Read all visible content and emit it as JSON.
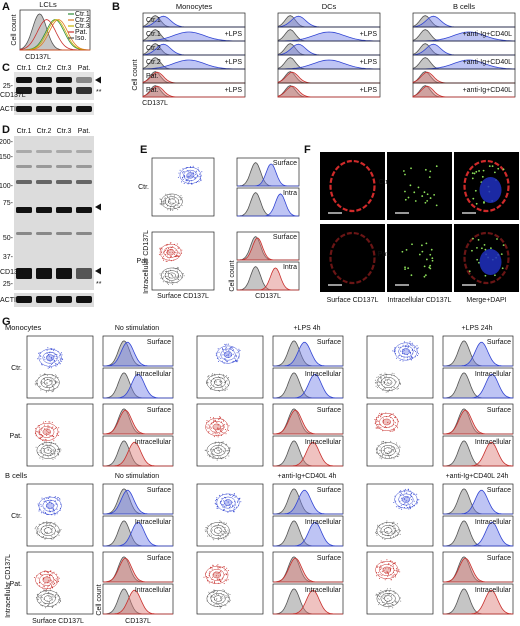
{
  "panels": {
    "A": {
      "letter": "A",
      "title": "LCLs",
      "legend": [
        "Ctr.1",
        "Ctr.2",
        "Ctr.3",
        "Pat.",
        "Iso."
      ],
      "y_label": "Cell count",
      "x_label": "CD137L"
    },
    "B": {
      "letter": "B",
      "columns": [
        "Monocytes",
        "DCs",
        "B cells"
      ],
      "rows": [
        {
          "label": "Ctr.1"
        },
        {
          "label": "Ctr.1",
          "treatments": [
            "+LPS",
            "+LPS",
            "+anti-Ig+CD40L"
          ]
        },
        {
          "label": "Ctr.2"
        },
        {
          "label": "Ctr.2",
          "treatments": [
            "+LPS",
            "+LPS",
            "+anti-Ig+CD40L"
          ]
        },
        {
          "label": "Pat."
        },
        {
          "label": "Pat.",
          "treatments": [
            "+LPS",
            "+LPS",
            "+anti-Ig+CD40L"
          ]
        }
      ],
      "y_label": "Cell count",
      "x_label": "CD137L"
    },
    "C": {
      "letter": "C",
      "lanes": [
        "Ctr.1",
        "Ctr.2",
        "Ctr.3",
        "Pat."
      ],
      "marker": "25-",
      "band_label": "CD137L",
      "loading": "ACTIN",
      "stars": "**"
    },
    "D": {
      "letter": "D",
      "lanes": [
        "Ctr.1",
        "Ctr.2",
        "Ctr.3",
        "Pat."
      ],
      "markers": [
        "200-",
        "150-",
        "100-",
        "75-",
        "50-",
        "37-",
        "25-"
      ],
      "band_label": "CD137L",
      "loading": "ACTIN",
      "stars": "**"
    },
    "E": {
      "letter": "E",
      "rows": [
        {
          "label": "Ctr.",
          "stains": [
            "Surface",
            "Intra"
          ]
        },
        {
          "label": "Pat.",
          "stains": [
            "Surface",
            "Intra"
          ]
        }
      ],
      "y_label": "Intracellular CD137L",
      "x_label": "Surface CD137L",
      "hist_y_label": "Cell count",
      "hist_x_label": "CD137L"
    },
    "F": {
      "letter": "F",
      "rows": [
        "Ctr.",
        "Pat."
      ],
      "columns": [
        "Surface CD137L",
        "Intracellular CD137L",
        "Merge+DAPI"
      ]
    },
    "G": {
      "letter": "G",
      "blocks": [
        {
          "cell_type": "Monocytes",
          "conditions": [
            "No stimulation",
            "+LPS 4h",
            "+LPS 24h"
          ],
          "rows": [
            "Ctr.",
            "Pat."
          ],
          "stains": [
            "Surface",
            "Intracellular"
          ]
        },
        {
          "cell_type": "B cells",
          "conditions": [
            "No stimulation",
            "+anti-Ig+CD40L  4h",
            "+anti-Ig+CD40L  24h"
          ],
          "rows": [
            "Ctr.",
            "Pat."
          ],
          "stains": [
            "Surface",
            "Intracellular"
          ]
        }
      ],
      "y_label": "Intracellular CD137L",
      "x_label": "Surface CD137L",
      "hist_y_label": "Cell count",
      "hist_x_label": "CD137L"
    }
  }
}
